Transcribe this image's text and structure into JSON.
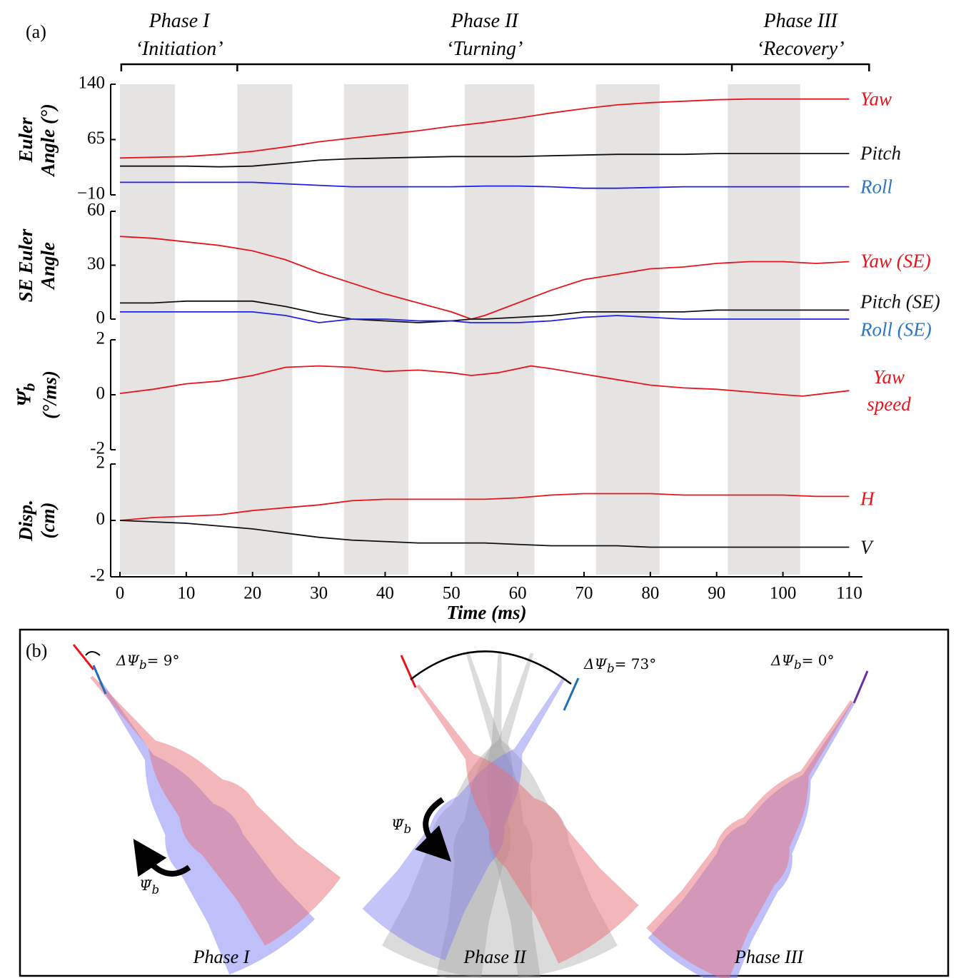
{
  "panel_a_label": "(a)",
  "phases": [
    {
      "name": "Phase I",
      "label": "‘Initiation’"
    },
    {
      "name": "Phase II",
      "label": "‘Turning’"
    },
    {
      "name": "Phase III",
      "label": "‘Recovery’"
    }
  ],
  "phase_bounds": [
    0.2,
    17.7,
    92.3,
    113
  ],
  "shaded_spans": [
    [
      0,
      8.3
    ],
    [
      17.7,
      26
    ],
    [
      33.8,
      43.5
    ],
    [
      52,
      62.5
    ],
    [
      71.8,
      81.4
    ],
    [
      91.7,
      102.6
    ]
  ],
  "chart_data": [
    {
      "type": "line",
      "ylabel": [
        "Euler",
        "Angle (°)"
      ],
      "xlim": [
        -1.4,
        112
      ],
      "ylim": [
        -10,
        140
      ],
      "yticks": [
        {
          "value": -10,
          "label": "−10"
        },
        65,
        140
      ],
      "x": [
        0,
        5,
        10,
        15,
        20,
        25,
        30,
        35,
        40,
        45,
        50,
        55,
        60,
        65,
        70,
        75,
        80,
        85,
        90,
        95,
        100,
        105,
        110
      ],
      "series": [
        {
          "name": "Yaw",
          "color": "#e8141c",
          "label_color": "#e8141c",
          "values": [
            40,
            41,
            42,
            45,
            49,
            55,
            62,
            67,
            72,
            77,
            83,
            88,
            94,
            101,
            107,
            112,
            115,
            117,
            119,
            120,
            120,
            120,
            120
          ]
        },
        {
          "name": "Pitch",
          "color": "#111111",
          "label_color": "#111111",
          "values": [
            29,
            29,
            29,
            28,
            29,
            33,
            37,
            39,
            40,
            41,
            42,
            42,
            42,
            43,
            44,
            45,
            45,
            45,
            46,
            46,
            46,
            46,
            46
          ]
        },
        {
          "name": "Roll",
          "color": "#2020e6",
          "label_color": "#2a78c4",
          "values": [
            7,
            7,
            7,
            7,
            7,
            5,
            3,
            1,
            1,
            1,
            1,
            2,
            2,
            1,
            -1,
            -1,
            0,
            1,
            1,
            1,
            1,
            1,
            1
          ]
        }
      ]
    },
    {
      "type": "line",
      "ylabel": [
        "SE Euler",
        "Angle"
      ],
      "xlim": [
        -1.4,
        112
      ],
      "ylim": [
        0,
        60
      ],
      "yticks": [
        0,
        30,
        60
      ],
      "x": [
        0,
        5,
        10,
        15,
        20,
        25,
        30,
        35,
        40,
        45,
        50,
        53,
        55,
        60,
        65,
        70,
        75,
        80,
        85,
        90,
        95,
        100,
        105,
        110
      ],
      "series": [
        {
          "name": "Yaw (SE)",
          "color": "#e8141c",
          "label_color": "#e8141c",
          "values": [
            46,
            45,
            43,
            41,
            38,
            33,
            26,
            20,
            14,
            9,
            4,
            0,
            2,
            9,
            16,
            22,
            25,
            28,
            29,
            31,
            32,
            32,
            31,
            32
          ]
        },
        {
          "name": "Pitch (SE)",
          "color": "#111111",
          "label_color": "#111111",
          "values": [
            9,
            9,
            10,
            10,
            10,
            7,
            3,
            0,
            -1,
            -2,
            -1,
            0,
            0,
            1,
            2,
            4,
            4,
            4,
            4,
            5,
            5,
            5,
            5,
            5
          ]
        },
        {
          "name": "Roll (SE)",
          "color": "#2020e6",
          "label_color": "#2a78c4",
          "values": [
            4,
            4,
            4,
            4,
            4,
            2,
            -2,
            0,
            0,
            -1,
            -1,
            -2,
            -2,
            -2,
            -1,
            1,
            2,
            1,
            0,
            0,
            0,
            0,
            0,
            0
          ]
        }
      ]
    },
    {
      "type": "line",
      "ylabel": [
        {
          "text": "Ψ̇",
          "sub": "b"
        },
        "(°/ms)"
      ],
      "xlim": [
        -1.4,
        112
      ],
      "ylim": [
        -2,
        2
      ],
      "yticks": [
        -2,
        0,
        2
      ],
      "x": [
        0,
        5,
        10,
        15,
        20,
        25,
        30,
        35,
        40,
        45,
        50,
        53,
        57,
        62,
        65,
        70,
        75,
        80,
        85,
        90,
        95,
        100,
        103,
        110
      ],
      "series": [
        {
          "name": "Yaw speed",
          "color": "#e8141c",
          "label_color": "#e8141c",
          "values": [
            0.05,
            0.2,
            0.4,
            0.5,
            0.7,
            1.0,
            1.05,
            1.0,
            0.85,
            0.9,
            0.8,
            0.7,
            0.8,
            1.05,
            0.95,
            0.75,
            0.55,
            0.35,
            0.25,
            0.2,
            0.1,
            0.0,
            -0.05,
            0.15
          ]
        }
      ]
    },
    {
      "type": "line",
      "ylabel": [
        "Disp.",
        "(cm)"
      ],
      "xlabel": "Time (ms)",
      "xlim": [
        -1.4,
        112
      ],
      "ylim": [
        -2,
        2
      ],
      "yticks": [
        -2,
        0,
        2
      ],
      "xticks": [
        0,
        10,
        20,
        30,
        40,
        50,
        60,
        70,
        80,
        90,
        100,
        110
      ],
      "x": [
        0,
        5,
        10,
        15,
        20,
        25,
        30,
        35,
        40,
        45,
        50,
        55,
        60,
        65,
        70,
        75,
        80,
        85,
        90,
        95,
        100,
        105,
        110
      ],
      "series": [
        {
          "name": "H",
          "color": "#e8141c",
          "label_color": "#e8141c",
          "values": [
            0,
            0.1,
            0.15,
            0.2,
            0.35,
            0.45,
            0.55,
            0.7,
            0.75,
            0.75,
            0.75,
            0.75,
            0.8,
            0.9,
            0.95,
            0.95,
            0.95,
            0.9,
            0.9,
            0.9,
            0.9,
            0.85,
            0.85
          ]
        },
        {
          "name": "V",
          "color": "#111111",
          "label_color": "#111111",
          "values": [
            0,
            -0.05,
            -0.1,
            -0.2,
            -0.3,
            -0.45,
            -0.6,
            -0.7,
            -0.75,
            -0.8,
            -0.8,
            -0.8,
            -0.85,
            -0.9,
            -0.9,
            -0.9,
            -0.95,
            -0.95,
            -0.95,
            -0.95,
            -0.95,
            -0.95,
            -0.95
          ]
        }
      ]
    }
  ],
  "panel_b": {
    "label": "(b)",
    "views": [
      {
        "angle": {
          "text": "ΔΨ",
          "sub": "b",
          "value_text": "= 9°"
        },
        "rate": {
          "text": "Ψ̇",
          "sub": "b"
        },
        "caption": "Phase I"
      },
      {
        "angle": {
          "text": "ΔΨ",
          "sub": "b",
          "value_text": "= 73°"
        },
        "rate": {
          "text": "Ψ̇",
          "sub": "b"
        },
        "caption": "Phase II"
      },
      {
        "angle": {
          "text": "ΔΨ",
          "sub": "b",
          "value_text": "= 0°"
        },
        "caption": "Phase III"
      }
    ]
  }
}
